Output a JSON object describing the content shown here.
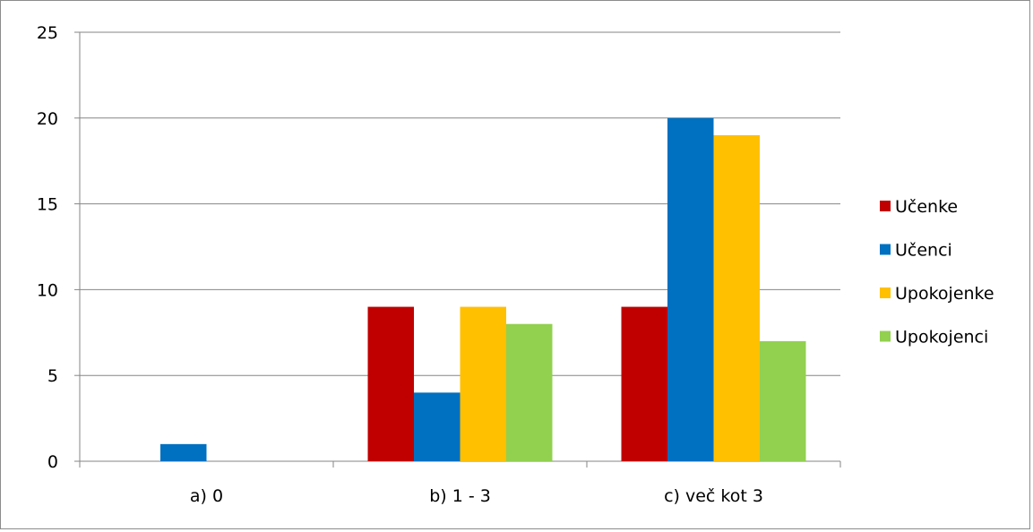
{
  "chart_data": {
    "type": "bar",
    "title": "",
    "xlabel": "",
    "ylabel": "",
    "categories": [
      "a) 0",
      "b) 1 - 3",
      "c) več kot 3"
    ],
    "series": [
      {
        "name": "Učenke",
        "color": "#C00000",
        "values": [
          0,
          9,
          9
        ]
      },
      {
        "name": "Učenci",
        "color": "#0070C0",
        "values": [
          1,
          4,
          20
        ]
      },
      {
        "name": "Upokojenke",
        "color": "#FFC000",
        "values": [
          0,
          9,
          19
        ]
      },
      {
        "name": "Upokojenci",
        "color": "#92D050",
        "values": [
          0,
          8,
          7
        ]
      }
    ],
    "ylim": [
      0,
      25
    ],
    "yticks": [
      0,
      5,
      10,
      15,
      20,
      25
    ],
    "grid": true,
    "legend_position": "right"
  }
}
